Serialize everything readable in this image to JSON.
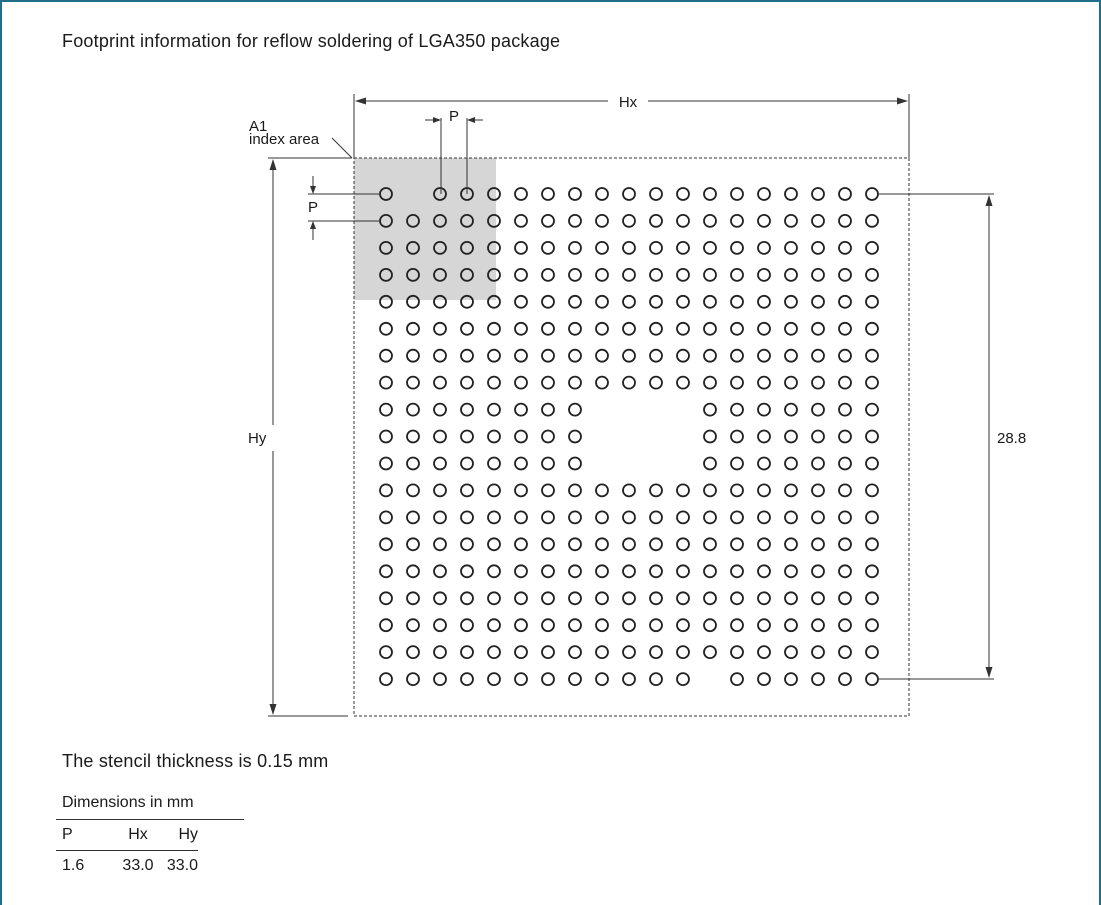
{
  "title": "Footprint information for reflow soldering of LGA350 package",
  "labels": {
    "a1": "A1",
    "index_area": "index area",
    "pitch": "P",
    "pitch_v": "P",
    "hx": "Hx",
    "hy": "Hy",
    "span": "28.8"
  },
  "grid": {
    "rows": 19,
    "cols": 19,
    "pads": 350,
    "index_area_color": "#d6d6d6"
  },
  "stencil_note": "The stencil thickness is 0.15 mm",
  "dimensions": {
    "caption": "Dimensions in mm",
    "headers": [
      "P",
      "Hx",
      "Hy"
    ],
    "values": [
      "1.6",
      "33.0",
      "33.0"
    ]
  }
}
